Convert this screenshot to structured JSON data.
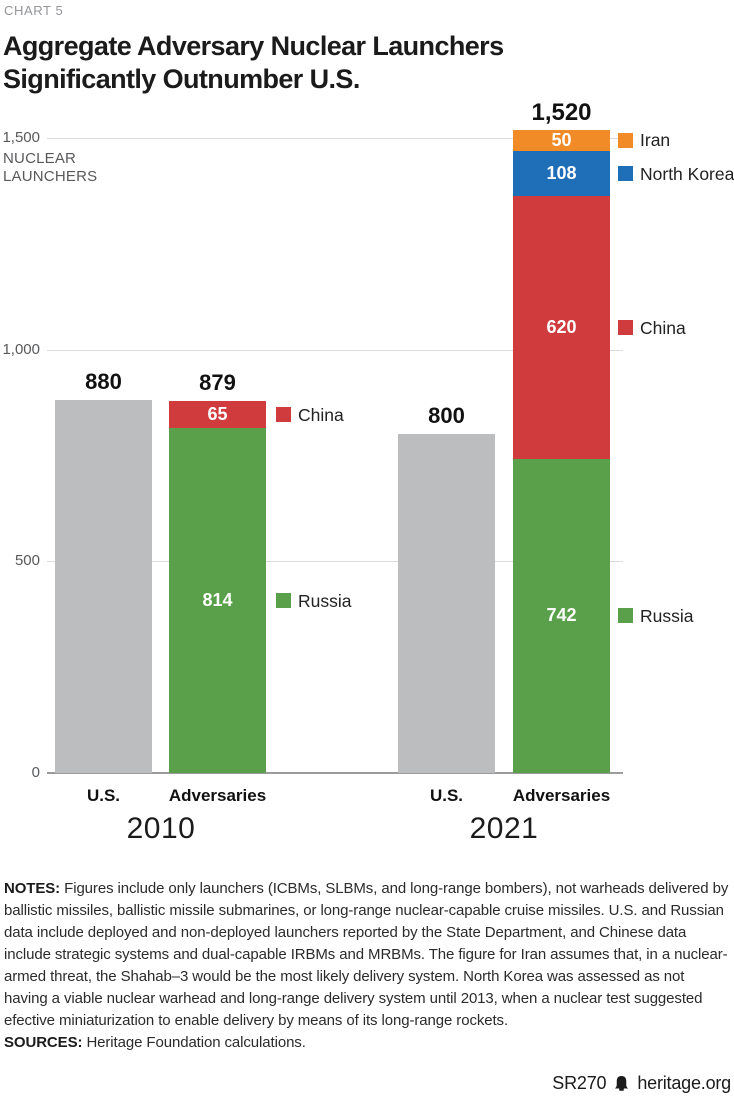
{
  "page": {
    "kicker": "CHART 5",
    "title_line1": "Aggregate Adversary Nuclear Launchers",
    "title_line2": "Significantly Outnumber U.S.",
    "notes_label": "NOTES:",
    "notes_text": " Figures include only launchers (ICBMs, SLBMs, and long-range bombers), not warheads delivered by ballistic missiles, ballistic missile submarines, or long-range nuclear-capable cruise missiles. U.S. and Russian data include deployed and non-deployed launchers reported by the State Department, and Chinese data include strategic systems and dual-capable IRBMs and MRBMs. The figure for Iran assumes that, in a nuclear-armed threat, the Shahab–3 would be the most likely delivery system. North Korea was assessed as not having a viable nuclear warhead and long-range delivery system until 2013, when a nuclear test suggested efective miniaturization to enable delivery by means of its long-range rockets.",
    "sources_label": "SOURCES:",
    "sources_text": " Heritage Foundation calculations.",
    "footer": {
      "report_id": "SR270",
      "site": "heritage.org",
      "logo_icon": "heritage-bell-icon"
    }
  },
  "colors": {
    "us_gray": "#BBBDBF",
    "russia_green": "#5AA04A",
    "china_red": "#D03B3E",
    "north_korea_blue": "#1F6FB8",
    "iran_orange": "#F18B28",
    "gridline": "#DBDBDB",
    "axis_line": "#9B9B9B"
  },
  "chart_data": {
    "type": "bar",
    "stacked": true,
    "title": "Aggregate Adversary Nuclear Launchers Significantly Outnumber U.S.",
    "ylabel": "NUCLEAR LAUNCHERS",
    "ylim": [
      0,
      1500
    ],
    "grid": "horizontal",
    "yticks": [
      {
        "value": 0,
        "label": "0"
      },
      {
        "value": 500,
        "label": "500"
      },
      {
        "value": 1000,
        "label": "1,000"
      },
      {
        "value": 1500,
        "label": "1,500"
      }
    ],
    "legend_position": "right-of-adversaries-bar",
    "groups": [
      {
        "year": "2010",
        "bars": [
          {
            "category": "U.S.",
            "total": 880,
            "total_label": "880",
            "segments": [
              {
                "name": "U.S.",
                "value": 880,
                "color_key": "us_gray",
                "show_value": false
              }
            ]
          },
          {
            "category": "Adversaries",
            "total": 879,
            "total_label": "879",
            "segments": [
              {
                "name": "Russia",
                "value": 814,
                "value_label": "814",
                "color_key": "russia_green",
                "show_value": true,
                "legend": "Russia"
              },
              {
                "name": "China",
                "value": 65,
                "value_label": "65",
                "color_key": "china_red",
                "show_value": true,
                "legend": "China"
              }
            ]
          }
        ]
      },
      {
        "year": "2021",
        "bars": [
          {
            "category": "U.S.",
            "total": 800,
            "total_label": "800",
            "segments": [
              {
                "name": "U.S.",
                "value": 800,
                "color_key": "us_gray",
                "show_value": false
              }
            ]
          },
          {
            "category": "Adversaries",
            "total": 1520,
            "total_label": "1,520",
            "segments": [
              {
                "name": "Russia",
                "value": 742,
                "value_label": "742",
                "color_key": "russia_green",
                "show_value": true,
                "legend": "Russia"
              },
              {
                "name": "China",
                "value": 620,
                "value_label": "620",
                "color_key": "china_red",
                "show_value": true,
                "legend": "China"
              },
              {
                "name": "North Korea",
                "value": 108,
                "value_label": "108",
                "color_key": "north_korea_blue",
                "show_value": true,
                "legend": "North Korea"
              },
              {
                "name": "Iran",
                "value": 50,
                "value_label": "50",
                "color_key": "iran_orange",
                "show_value": true,
                "legend": "Iran"
              }
            ]
          }
        ]
      }
    ]
  }
}
